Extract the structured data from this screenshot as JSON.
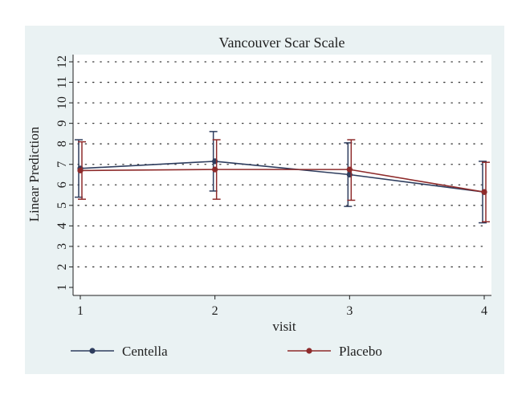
{
  "chart_data": {
    "type": "line",
    "title": "Vancouver Scar Scale",
    "xlabel": "visit",
    "ylabel": "Linear Prediction",
    "x": [
      1,
      2,
      3,
      4
    ],
    "xlim": [
      1,
      4
    ],
    "ylim": [
      0.5,
      12.5
    ],
    "yticks": [
      1,
      2,
      3,
      4,
      5,
      6,
      7,
      8,
      9,
      10,
      11,
      12
    ],
    "grid": "horizontal-dotted",
    "legend_position": "bottom",
    "series": [
      {
        "name": "Centella",
        "color": "#2e3d5e",
        "values": [
          6.8,
          7.15,
          6.5,
          5.65
        ],
        "ci_low": [
          5.4,
          5.7,
          4.95,
          4.15
        ],
        "ci_high": [
          8.2,
          8.6,
          8.05,
          7.15
        ]
      },
      {
        "name": "Placebo",
        "color": "#8e2b2b",
        "values": [
          6.7,
          6.75,
          6.75,
          5.65
        ],
        "ci_low": [
          5.3,
          5.3,
          5.25,
          4.2
        ],
        "ci_high": [
          8.1,
          8.2,
          8.2,
          7.1
        ]
      }
    ]
  }
}
